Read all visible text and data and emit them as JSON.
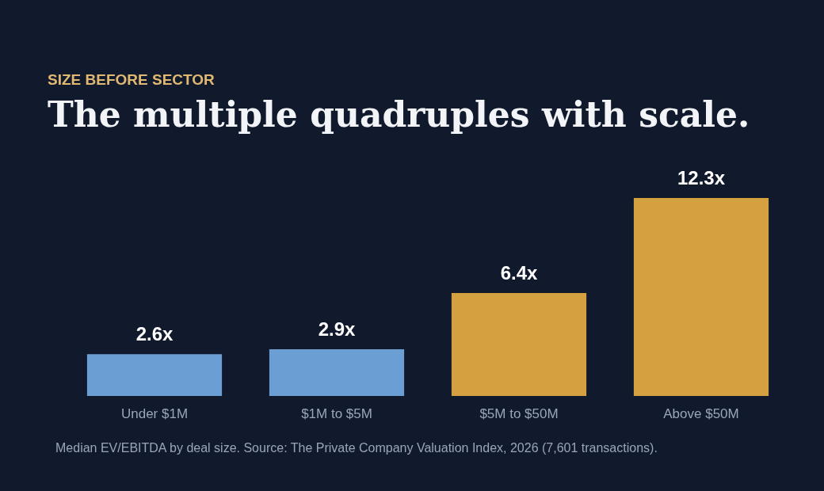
{
  "chart_data": {
    "type": "bar",
    "subtitle": "SIZE BEFORE SECTOR",
    "title": "The multiple quadruples with scale.",
    "categories": [
      "Under $1M",
      "$1M to $5M",
      "$5M to $50M",
      "Above $50M"
    ],
    "values": [
      2.6,
      2.9,
      6.4,
      12.3
    ],
    "colors": [
      "#6b9fd4",
      "#6b9fd4",
      "#d4a040",
      "#d4a040"
    ],
    "value_labels": [
      "2.6x",
      "2.9x",
      "6.4x",
      "12.3x"
    ],
    "annotations": [
      "Median EV/EBITDA by deal size. Source: The Private Company Valuation Index, 2026 (7,601 transactions)."
    ],
    "grid": false
  }
}
